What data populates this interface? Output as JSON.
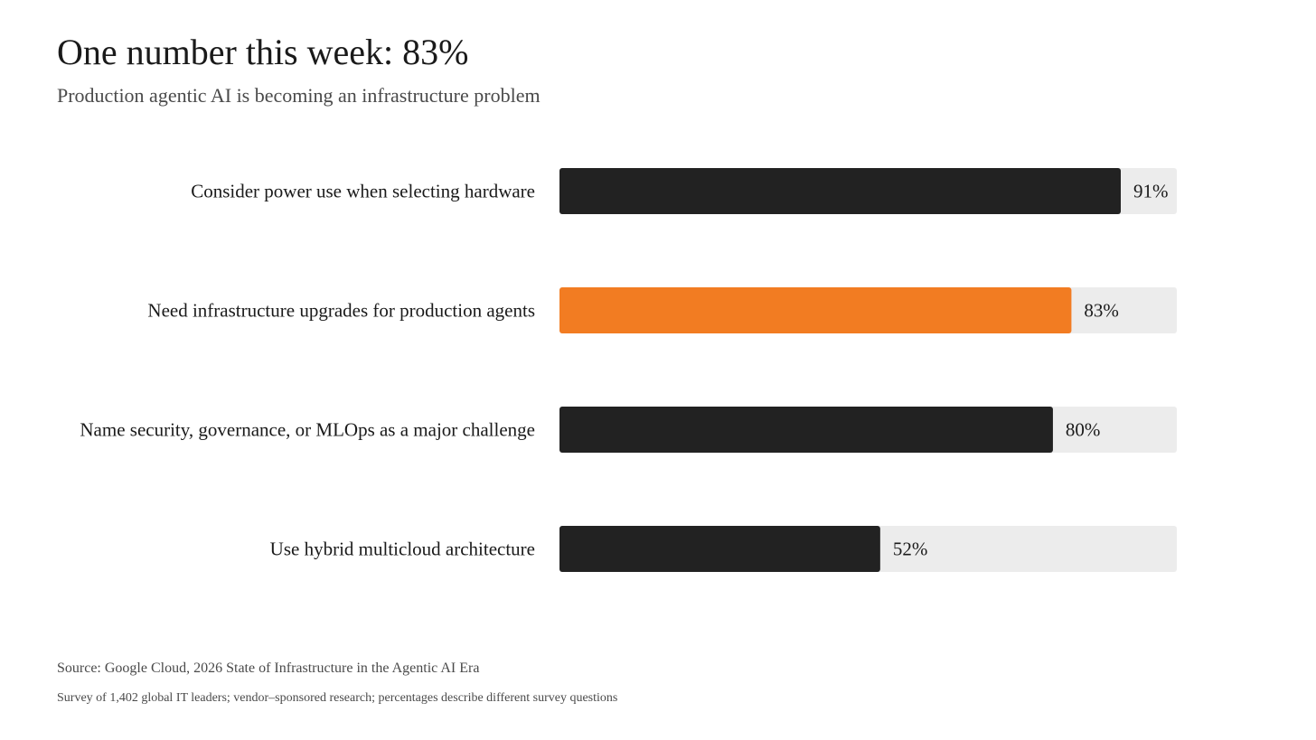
{
  "header": {
    "title": "One number this week: 83%",
    "subtitle": "Production agentic AI is becoming an infrastructure problem"
  },
  "chart_data": {
    "type": "bar",
    "orientation": "horizontal",
    "categories": [
      "Consider power use when selecting hardware",
      "Need infrastructure upgrades for production agents",
      "Name security, governance, or MLOps as a major challenge",
      "Use hybrid multicloud architecture"
    ],
    "values": [
      91,
      83,
      80,
      52
    ],
    "value_labels": [
      "91%",
      "83%",
      "80%",
      "52%"
    ],
    "xlim": [
      0,
      100
    ],
    "highlight_index": 1,
    "bar_color": "#222222",
    "highlight_color": "#f27c22",
    "track_color": "#ececec",
    "grid": false,
    "legend": "none"
  },
  "footer": {
    "source": "Source: Google Cloud, 2026 State of Infrastructure in the Agentic AI Era",
    "note": "Survey of 1,402 global IT leaders; vendor–sponsored research; percentages describe different survey questions"
  }
}
